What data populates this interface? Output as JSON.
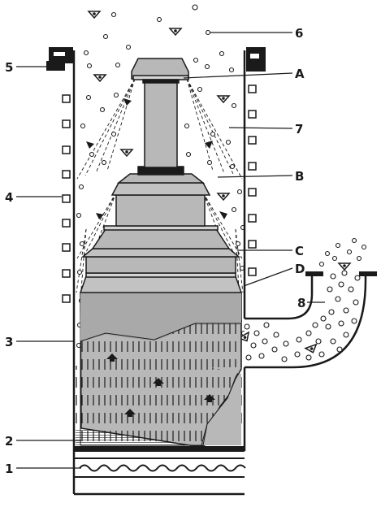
{
  "labels": {
    "A": "A",
    "B": "B",
    "C": "C",
    "D": "D",
    "n1": "1",
    "n2": "2",
    "n3": "3",
    "n4": "4",
    "n5": "5",
    "n6": "6",
    "n7": "7",
    "n8": "8"
  },
  "colors": {
    "ink": "#1a1a1a",
    "body_fill": "#b8b8b8",
    "shade_fill": "#a9a9a9",
    "light_fill": "#d4d4d4",
    "paper": "#ffffff"
  }
}
